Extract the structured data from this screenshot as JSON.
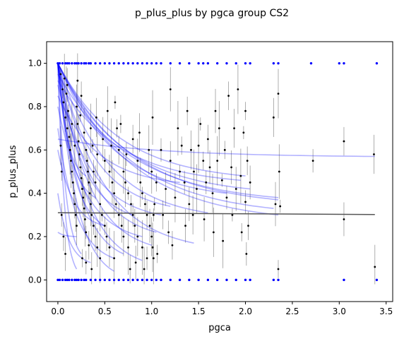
{
  "chart_data": {
    "type": "scatter",
    "title": "p_plus_plus by pgca group CS2",
    "xlabel": "pgca",
    "ylabel": "p_plus_plus",
    "xlim": [
      -0.12,
      3.57
    ],
    "ylim": [
      -0.1,
      1.1
    ],
    "xticks": [
      0.0,
      0.5,
      1.0,
      1.5,
      2.0,
      2.5,
      3.0,
      3.5
    ],
    "xtick_labels": [
      "0.0",
      "0.5",
      "1.0",
      "1.5",
      "2.0",
      "2.5",
      "3.0",
      "3.5"
    ],
    "yticks": [
      0.0,
      0.2,
      0.4,
      0.6,
      0.8,
      1.0
    ],
    "ytick_labels": [
      "0.0",
      "0.2",
      "0.4",
      "0.6",
      "0.8",
      "1.0"
    ],
    "grid": false,
    "legend": "none",
    "colors": {
      "points": "#000000",
      "boundary_points": "#0000ff",
      "group_fits": "#0000ff",
      "group_fit_alpha": 0.3,
      "overall_fit": "#555555",
      "errorbars": "#9a9a9a"
    },
    "overall_fit": {
      "x": [
        0.0,
        3.38
      ],
      "y": [
        0.31,
        0.302
      ]
    },
    "group_fits": [
      {
        "x": [
          0.0,
          3.38
        ],
        "y": [
          0.65,
          0.57
        ]
      },
      {
        "x": [
          0.0,
          2.35
        ],
        "y": [
          1.0,
          0.3
        ]
      },
      {
        "x": [
          0.0,
          2.3
        ],
        "y": [
          1.0,
          0.33
        ]
      },
      {
        "x": [
          0.0,
          2.35
        ],
        "y": [
          1.0,
          0.37
        ]
      },
      {
        "x": [
          0.0,
          2.0
        ],
        "y": [
          1.0,
          0.48
        ]
      },
      {
        "x": [
          0.0,
          2.05
        ],
        "y": [
          1.0,
          0.42
        ]
      },
      {
        "x": [
          0.0,
          1.8
        ],
        "y": [
          1.0,
          0.4
        ]
      },
      {
        "x": [
          0.0,
          1.6
        ],
        "y": [
          1.0,
          0.31
        ]
      },
      {
        "x": [
          0.0,
          1.45
        ],
        "y": [
          1.0,
          0.17
        ]
      },
      {
        "x": [
          0.0,
          1.2
        ],
        "y": [
          1.0,
          0.34
        ]
      },
      {
        "x": [
          0.0,
          1.05
        ],
        "y": [
          1.0,
          0.22
        ]
      },
      {
        "x": [
          0.0,
          1.0
        ],
        "y": [
          1.0,
          0.16
        ]
      },
      {
        "x": [
          0.0,
          0.9
        ],
        "y": [
          1.0,
          0.09
        ]
      },
      {
        "x": [
          0.0,
          0.8
        ],
        "y": [
          1.0,
          0.3
        ]
      },
      {
        "x": [
          0.0,
          0.7
        ],
        "y": [
          1.0,
          0.12
        ]
      },
      {
        "x": [
          0.0,
          0.6
        ],
        "y": [
          1.0,
          0.04
        ]
      },
      {
        "x": [
          0.0,
          0.5
        ],
        "y": [
          1.0,
          0.25
        ]
      },
      {
        "x": [
          0.0,
          0.4
        ],
        "y": [
          1.0,
          0.38
        ]
      },
      {
        "x": [
          0.0,
          0.3
        ],
        "y": [
          1.0,
          0.48
        ]
      },
      {
        "x": [
          0.0,
          0.25
        ],
        "y": [
          1.0,
          0.12
        ]
      },
      {
        "x": [
          0.0,
          0.2
        ],
        "y": [
          1.0,
          0.05
        ]
      },
      {
        "x": [
          0.0,
          1.1
        ],
        "y": [
          0.9,
          0.3
        ]
      },
      {
        "x": [
          0.0,
          1.3
        ],
        "y": [
          0.85,
          0.45
        ]
      },
      {
        "x": [
          0.0,
          0.9
        ],
        "y": [
          0.8,
          0.2
        ]
      },
      {
        "x": [
          0.0,
          0.6
        ],
        "y": [
          0.7,
          0.1
        ]
      },
      {
        "x": [
          0.0,
          0.5
        ],
        "y": [
          0.6,
          0.25
        ]
      },
      {
        "x": [
          0.0,
          2.35
        ],
        "y": [
          0.95,
          0.38
        ]
      },
      {
        "x": [
          0.0,
          1.95
        ],
        "y": [
          0.92,
          0.46
        ]
      },
      {
        "x": [
          0.0,
          0.35
        ],
        "y": [
          0.4,
          0.08
        ]
      },
      {
        "x": [
          0.0,
          0.2
        ],
        "y": [
          0.22,
          0.2
        ]
      }
    ],
    "points": [
      [
        0.0,
        1.0
      ],
      [
        0.02,
        1.0
      ],
      [
        0.05,
        1.0
      ],
      [
        0.08,
        1.0
      ],
      [
        0.1,
        1.0
      ],
      [
        0.12,
        1.0
      ],
      [
        0.15,
        1.0
      ],
      [
        0.18,
        1.0
      ],
      [
        0.2,
        1.0
      ],
      [
        0.22,
        1.0
      ],
      [
        0.25,
        1.0
      ],
      [
        0.28,
        1.0
      ],
      [
        0.3,
        1.0
      ],
      [
        0.33,
        1.0
      ],
      [
        0.35,
        1.0
      ],
      [
        0.4,
        1.0
      ],
      [
        0.45,
        1.0
      ],
      [
        0.5,
        1.0
      ],
      [
        0.55,
        1.0
      ],
      [
        0.6,
        1.0
      ],
      [
        0.65,
        1.0
      ],
      [
        0.7,
        1.0
      ],
      [
        0.75,
        1.0
      ],
      [
        0.8,
        1.0
      ],
      [
        0.85,
        1.0
      ],
      [
        0.9,
        1.0
      ],
      [
        0.95,
        1.0
      ],
      [
        1.0,
        1.0
      ],
      [
        1.05,
        1.0
      ],
      [
        1.1,
        1.0
      ],
      [
        1.2,
        1.0
      ],
      [
        1.3,
        1.0
      ],
      [
        1.4,
        1.0
      ],
      [
        1.5,
        1.0
      ],
      [
        1.55,
        1.0
      ],
      [
        1.6,
        1.0
      ],
      [
        1.7,
        1.0
      ],
      [
        1.8,
        1.0
      ],
      [
        1.9,
        1.0
      ],
      [
        2.0,
        1.0
      ],
      [
        2.05,
        1.0
      ],
      [
        2.3,
        1.0
      ],
      [
        2.35,
        1.0
      ],
      [
        2.7,
        1.0
      ],
      [
        3.0,
        1.0
      ],
      [
        3.05,
        1.0
      ],
      [
        3.4,
        1.0
      ],
      [
        0.0,
        0.0
      ],
      [
        0.02,
        0.0
      ],
      [
        0.05,
        0.0
      ],
      [
        0.08,
        0.0
      ],
      [
        0.1,
        0.0
      ],
      [
        0.12,
        0.0
      ],
      [
        0.15,
        0.0
      ],
      [
        0.18,
        0.0
      ],
      [
        0.2,
        0.0
      ],
      [
        0.22,
        0.0
      ],
      [
        0.25,
        0.0
      ],
      [
        0.28,
        0.0
      ],
      [
        0.3,
        0.0
      ],
      [
        0.35,
        0.0
      ],
      [
        0.4,
        0.0
      ],
      [
        0.45,
        0.0
      ],
      [
        0.5,
        0.0
      ],
      [
        0.55,
        0.0
      ],
      [
        0.6,
        0.0
      ],
      [
        0.65,
        0.0
      ],
      [
        0.7,
        0.0
      ],
      [
        0.75,
        0.0
      ],
      [
        0.8,
        0.0
      ],
      [
        0.85,
        0.0
      ],
      [
        0.9,
        0.0
      ],
      [
        0.95,
        0.0
      ],
      [
        1.0,
        0.0
      ],
      [
        1.05,
        0.0
      ],
      [
        1.1,
        0.0
      ],
      [
        1.2,
        0.0
      ],
      [
        1.3,
        0.0
      ],
      [
        1.4,
        0.0
      ],
      [
        1.5,
        0.0
      ],
      [
        1.6,
        0.0
      ],
      [
        1.7,
        0.0
      ],
      [
        1.8,
        0.0
      ],
      [
        1.9,
        0.0
      ],
      [
        2.0,
        0.0
      ],
      [
        2.05,
        0.0
      ],
      [
        2.3,
        0.0
      ],
      [
        2.35,
        0.0
      ],
      [
        3.05,
        0.0
      ],
      [
        3.4,
        0.0
      ],
      [
        0.03,
        0.95
      ],
      [
        0.05,
        0.88
      ],
      [
        0.06,
        0.82
      ],
      [
        0.08,
        0.75
      ],
      [
        0.1,
        0.9
      ],
      [
        0.1,
        0.7
      ],
      [
        0.12,
        0.66
      ],
      [
        0.13,
        0.6
      ],
      [
        0.14,
        0.55
      ],
      [
        0.15,
        0.5
      ],
      [
        0.16,
        0.45
      ],
      [
        0.17,
        0.4
      ],
      [
        0.18,
        0.35
      ],
      [
        0.19,
        0.3
      ],
      [
        0.2,
        0.25
      ],
      [
        0.2,
        0.8
      ],
      [
        0.21,
        0.72
      ],
      [
        0.22,
        0.64
      ],
      [
        0.23,
        0.58
      ],
      [
        0.24,
        0.52
      ],
      [
        0.25,
        0.47
      ],
      [
        0.25,
        0.85
      ],
      [
        0.26,
        0.42
      ],
      [
        0.27,
        0.38
      ],
      [
        0.28,
        0.33
      ],
      [
        0.28,
        0.68
      ],
      [
        0.29,
        0.28
      ],
      [
        0.3,
        0.22
      ],
      [
        0.3,
        0.6
      ],
      [
        0.31,
        0.55
      ],
      [
        0.32,
        0.5
      ],
      [
        0.33,
        0.45
      ],
      [
        0.34,
        0.4
      ],
      [
        0.35,
        0.35
      ],
      [
        0.35,
        0.7
      ],
      [
        0.36,
        0.3
      ],
      [
        0.37,
        0.62
      ],
      [
        0.38,
        0.25
      ],
      [
        0.38,
        0.5
      ],
      [
        0.4,
        0.2
      ],
      [
        0.4,
        0.45
      ],
      [
        0.42,
        0.15
      ],
      [
        0.42,
        0.58
      ],
      [
        0.45,
        0.1
      ],
      [
        0.45,
        0.35
      ],
      [
        0.47,
        0.3
      ],
      [
        0.5,
        0.25
      ],
      [
        0.5,
        0.55
      ],
      [
        0.52,
        0.2
      ],
      [
        0.55,
        0.5
      ],
      [
        0.55,
        0.15
      ],
      [
        0.58,
        0.45
      ],
      [
        0.6,
        0.4
      ],
      [
        0.6,
        0.1
      ],
      [
        0.62,
        0.35
      ],
      [
        0.63,
        0.7
      ],
      [
        0.65,
        0.3
      ],
      [
        0.65,
        0.6
      ],
      [
        0.68,
        0.25
      ],
      [
        0.7,
        0.2
      ],
      [
        0.7,
        0.5
      ],
      [
        0.72,
        0.45
      ],
      [
        0.75,
        0.15
      ],
      [
        0.75,
        0.4
      ],
      [
        0.78,
        0.35
      ],
      [
        0.8,
        0.3
      ],
      [
        0.8,
        0.65
      ],
      [
        0.82,
        0.25
      ],
      [
        0.85,
        0.2
      ],
      [
        0.85,
        0.55
      ],
      [
        0.88,
        0.45
      ],
      [
        0.9,
        0.15
      ],
      [
        0.9,
        0.4
      ],
      [
        0.93,
        0.35
      ],
      [
        0.95,
        0.1
      ],
      [
        0.95,
        0.3
      ],
      [
        0.98,
        0.25
      ],
      [
        1.0,
        0.2
      ],
      [
        1.0,
        0.5
      ],
      [
        1.01,
        0.15
      ],
      [
        1.02,
        0.1
      ],
      [
        1.03,
        0.35
      ],
      [
        1.05,
        0.45
      ],
      [
        1.1,
        0.6
      ],
      [
        1.12,
        0.3
      ],
      [
        1.15,
        0.42
      ],
      [
        1.2,
        0.55
      ],
      [
        1.2,
        0.88
      ],
      [
        1.25,
        0.38
      ],
      [
        1.28,
        0.7
      ],
      [
        1.3,
        0.5
      ],
      [
        1.32,
        0.62
      ],
      [
        1.35,
        0.45
      ],
      [
        1.38,
        0.78
      ],
      [
        1.4,
        0.35
      ],
      [
        1.42,
        0.6
      ],
      [
        1.45,
        0.5
      ],
      [
        1.48,
        0.42
      ],
      [
        1.5,
        0.62
      ],
      [
        1.52,
        0.72
      ],
      [
        1.55,
        0.55
      ],
      [
        1.58,
        0.45
      ],
      [
        1.6,
        0.65
      ],
      [
        1.62,
        0.52
      ],
      [
        1.65,
        0.4
      ],
      [
        1.68,
        0.78
      ],
      [
        1.7,
        0.55
      ],
      [
        1.72,
        0.7
      ],
      [
        1.75,
        0.46
      ],
      [
        1.78,
        0.6
      ],
      [
        1.8,
        0.38
      ],
      [
        1.82,
        0.85
      ],
      [
        1.85,
        0.52
      ],
      [
        1.88,
        0.7
      ],
      [
        1.9,
        0.42
      ],
      [
        1.92,
        0.88
      ],
      [
        1.95,
        0.48
      ],
      [
        1.98,
        0.68
      ],
      [
        2.0,
        0.78
      ],
      [
        2.0,
        0.36
      ],
      [
        2.02,
        0.55
      ],
      [
        2.05,
        0.45
      ],
      [
        2.3,
        0.75
      ],
      [
        2.32,
        0.35
      ],
      [
        2.35,
        0.86
      ],
      [
        2.36,
        0.5
      ],
      [
        2.37,
        0.34
      ],
      [
        2.35,
        0.05
      ],
      [
        2.72,
        0.55
      ],
      [
        3.05,
        0.64
      ],
      [
        3.05,
        0.28
      ],
      [
        3.37,
        0.58
      ],
      [
        3.38,
        0.06
      ],
      [
        0.07,
        0.93
      ],
      [
        0.09,
        0.86
      ],
      [
        0.11,
        0.78
      ],
      [
        0.04,
        0.5
      ],
      [
        0.04,
        0.3
      ],
      [
        0.06,
        0.2
      ],
      [
        0.08,
        0.12
      ],
      [
        0.03,
        0.62
      ],
      [
        0.15,
        0.72
      ],
      [
        0.18,
        0.62
      ],
      [
        0.21,
        0.92
      ],
      [
        0.24,
        0.76
      ],
      [
        0.26,
        0.1
      ],
      [
        0.3,
        0.08
      ],
      [
        0.33,
        0.16
      ],
      [
        0.36,
        0.05
      ],
      [
        0.41,
        0.75
      ],
      [
        0.48,
        0.65
      ],
      [
        0.53,
        0.78
      ],
      [
        0.57,
        0.62
      ],
      [
        0.61,
        0.82
      ],
      [
        0.67,
        0.72
      ],
      [
        0.73,
        0.58
      ],
      [
        0.77,
        0.05
      ],
      [
        0.83,
        0.08
      ],
      [
        0.87,
        0.68
      ],
      [
        0.92,
        0.05
      ],
      [
        0.97,
        0.6
      ],
      [
        1.01,
        0.75
      ],
      [
        1.02,
        0.3
      ],
      [
        1.06,
        0.12
      ],
      [
        1.18,
        0.22
      ],
      [
        1.22,
        0.16
      ],
      [
        1.36,
        0.25
      ],
      [
        1.44,
        0.3
      ],
      [
        1.56,
        0.28
      ],
      [
        1.66,
        0.22
      ],
      [
        1.76,
        0.18
      ],
      [
        1.86,
        0.3
      ],
      [
        1.96,
        0.22
      ],
      [
        2.01,
        0.12
      ],
      [
        2.03,
        0.25
      ]
    ]
  }
}
